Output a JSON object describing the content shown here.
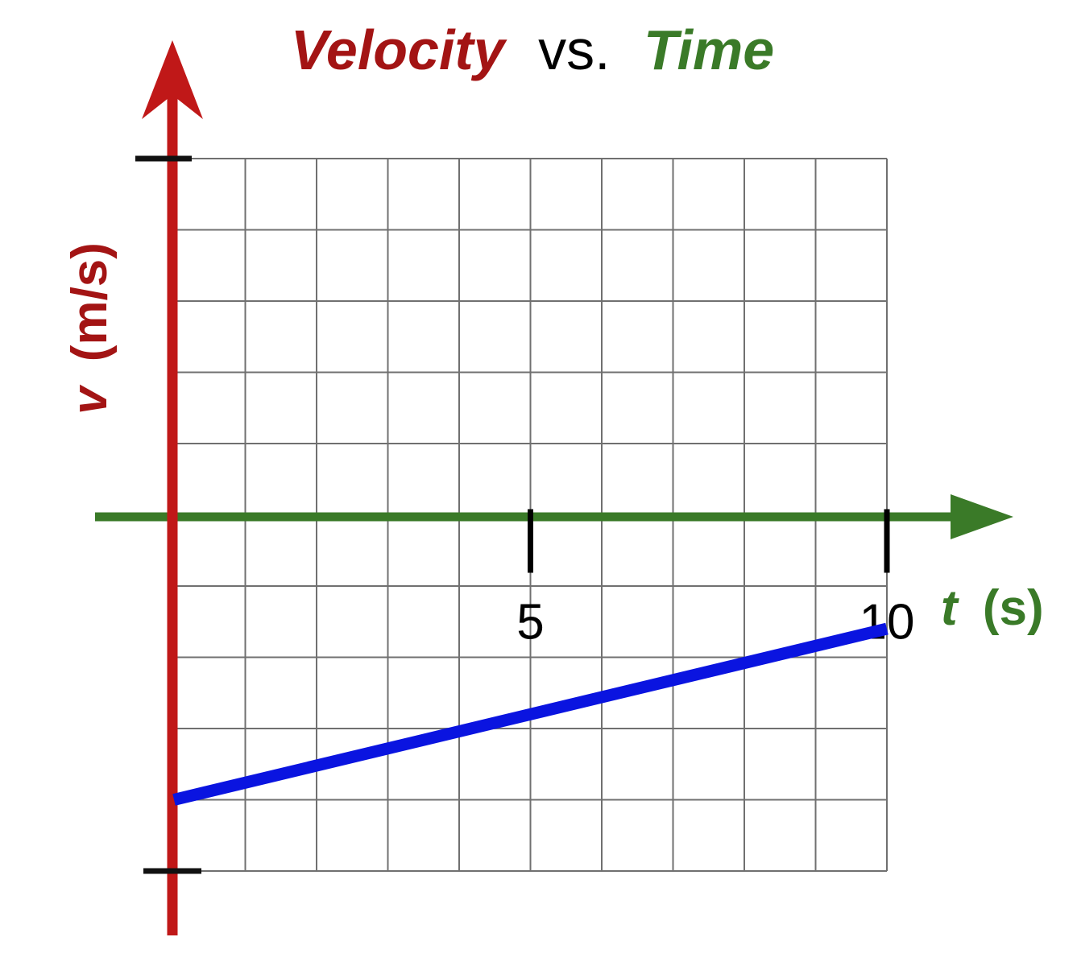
{
  "chart_data": {
    "type": "line",
    "title": {
      "part1": "Velocity",
      "part2": "vs.",
      "part3": "Time"
    },
    "xlabel": {
      "var": "t",
      "unit": "(s)"
    },
    "ylabel": {
      "var": "v",
      "unit": "(m/s)"
    },
    "x_ticks": [
      {
        "value": 5,
        "label": "5"
      },
      {
        "value": 10,
        "label": "10"
      }
    ],
    "xlim": [
      0,
      10
    ],
    "ylim": [
      -5,
      5
    ],
    "grid": true,
    "series": [
      {
        "x": [
          0,
          10
        ],
        "y": [
          -4,
          -1.6
        ]
      }
    ],
    "colors": {
      "title_velocity": "#a31414",
      "title_vs": "#000000",
      "title_time": "#3a7a28",
      "v_axis": "#c01818",
      "t_axis": "#3a7a28",
      "ylabel": "#a31414",
      "xlabel": "#3a7a28",
      "series": "#0a14e0",
      "grid": "#707070",
      "ticks": "#000000"
    }
  }
}
